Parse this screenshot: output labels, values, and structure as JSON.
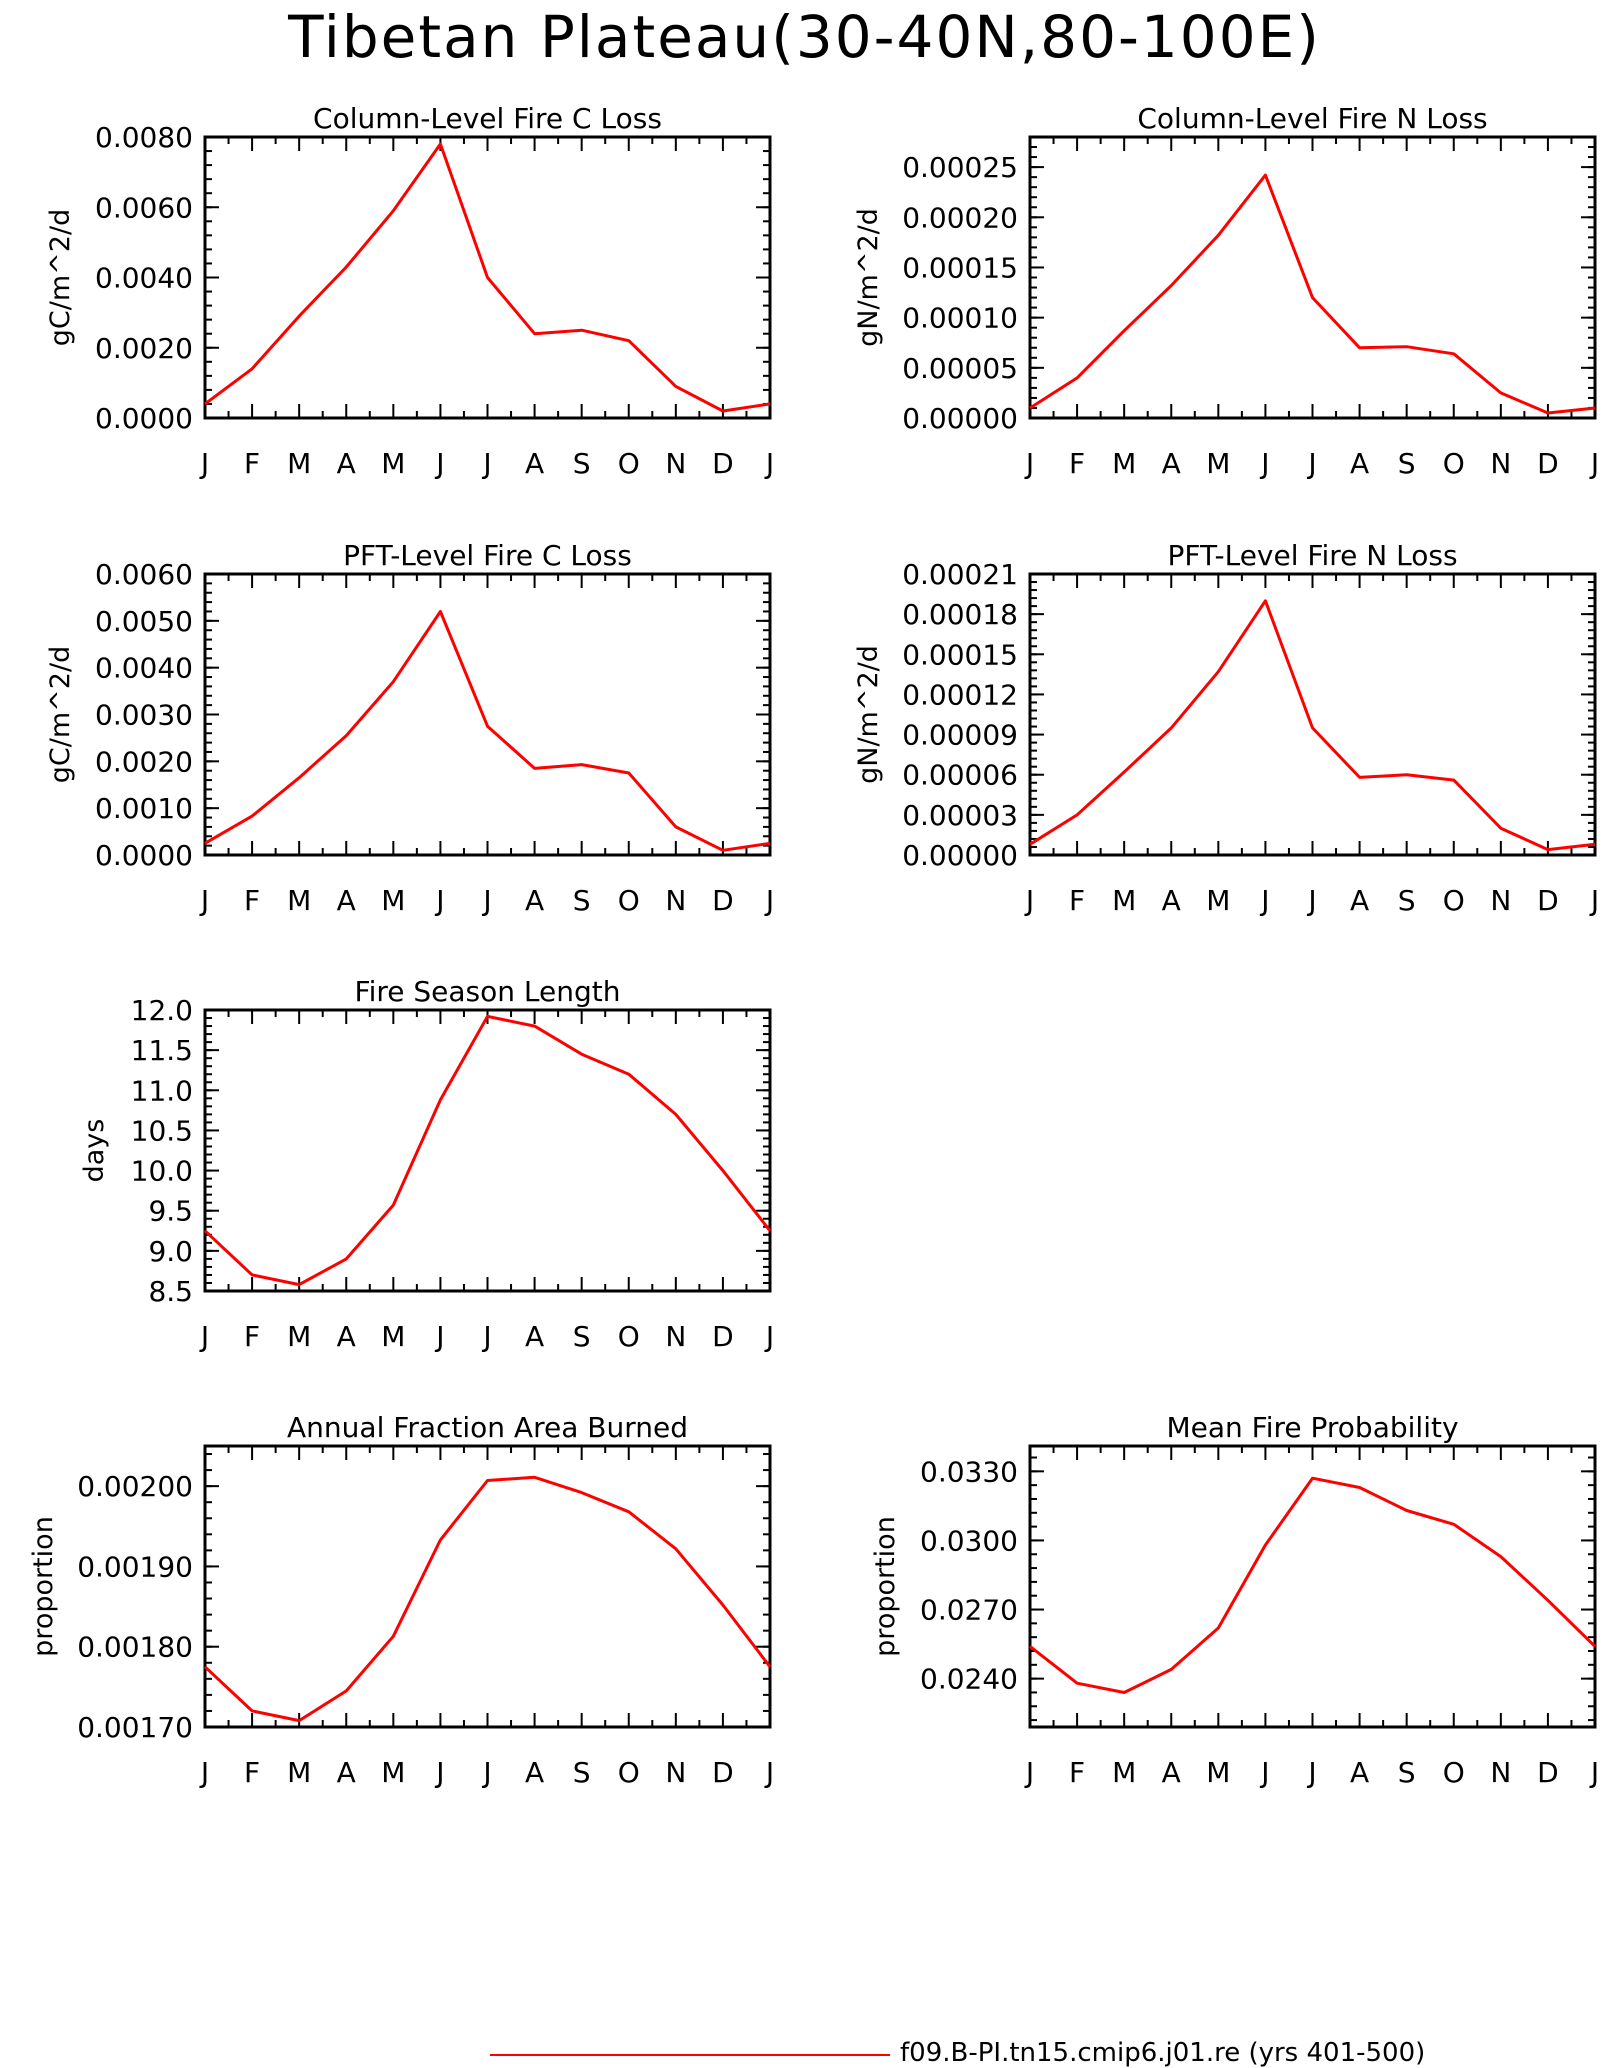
{
  "page": {
    "title": "Tibetan Plateau(30-40N,80-100E)",
    "legend": {
      "label": "f09.B-PI.tn15.cmip6.j01.re (yrs 401-500)",
      "color": "#ff0000"
    }
  },
  "chart_data": [
    {
      "type": "line",
      "title": "Column-Level Fire C Loss",
      "ylabel": "gC/m^2/d",
      "categories": [
        "J",
        "F",
        "M",
        "A",
        "M",
        "J",
        "J",
        "A",
        "S",
        "O",
        "N",
        "D",
        "J"
      ],
      "ylim": [
        0,
        0.008
      ],
      "yticks": [
        0,
        0.002,
        0.004,
        0.006,
        0.008
      ],
      "ytick_labels": [
        "0.0000",
        "0.0020",
        "0.0040",
        "0.0060",
        "0.0080"
      ],
      "series": [
        {
          "color": "#ff0000",
          "values": [
            0.0004,
            0.0014,
            0.0029,
            0.0043,
            0.0059,
            0.0078,
            0.004,
            0.0024,
            0.0025,
            0.0022,
            0.0009,
            0.0002,
            0.0004
          ]
        }
      ]
    },
    {
      "type": "line",
      "title": "Column-Level Fire N Loss",
      "ylabel": "gN/m^2/d",
      "categories": [
        "J",
        "F",
        "M",
        "A",
        "M",
        "J",
        "J",
        "A",
        "S",
        "O",
        "N",
        "D",
        "J"
      ],
      "ylim": [
        0,
        0.00028
      ],
      "yticks": [
        0,
        5e-05,
        0.0001,
        0.00015,
        0.0002,
        0.00025
      ],
      "ytick_labels": [
        "0.00000",
        "0.00005",
        "0.00010",
        "0.00015",
        "0.00020",
        "0.00025"
      ],
      "series": [
        {
          "color": "#ff0000",
          "values": [
            1e-05,
            4e-05,
            8.7e-05,
            0.000132,
            0.000182,
            0.000242,
            0.00012,
            7e-05,
            7.1e-05,
            6.4e-05,
            2.5e-05,
            5e-06,
            1e-05
          ]
        }
      ]
    },
    {
      "type": "line",
      "title": "PFT-Level Fire C Loss",
      "ylabel": "gC/m^2/d",
      "categories": [
        "J",
        "F",
        "M",
        "A",
        "M",
        "J",
        "J",
        "A",
        "S",
        "O",
        "N",
        "D",
        "J"
      ],
      "ylim": [
        0,
        0.006
      ],
      "yticks": [
        0,
        0.001,
        0.002,
        0.003,
        0.004,
        0.005,
        0.006
      ],
      "ytick_labels": [
        "0.0000",
        "0.0010",
        "0.0020",
        "0.0030",
        "0.0040",
        "0.0050",
        "0.0060"
      ],
      "series": [
        {
          "color": "#ff0000",
          "values": [
            0.00025,
            0.00083,
            0.00165,
            0.00255,
            0.0037,
            0.0052,
            0.00275,
            0.00185,
            0.00193,
            0.00175,
            0.0006,
            0.0001,
            0.00025
          ]
        }
      ]
    },
    {
      "type": "line",
      "title": "PFT-Level Fire N Loss",
      "ylabel": "gN/m^2/d",
      "categories": [
        "J",
        "F",
        "M",
        "A",
        "M",
        "J",
        "J",
        "A",
        "S",
        "O",
        "N",
        "D",
        "J"
      ],
      "ylim": [
        0,
        0.00021
      ],
      "yticks": [
        0,
        3e-05,
        6e-05,
        9e-05,
        0.00012,
        0.00015,
        0.00018,
        0.00021
      ],
      "ytick_labels": [
        "0.00000",
        "0.00003",
        "0.00006",
        "0.00009",
        "0.00012",
        "0.00015",
        "0.00018",
        "0.00021"
      ],
      "series": [
        {
          "color": "#ff0000",
          "values": [
            8e-06,
            3e-05,
            6.2e-05,
            9.5e-05,
            0.000137,
            0.00019,
            9.5e-05,
            5.8e-05,
            6e-05,
            5.6e-05,
            2e-05,
            4e-06,
            8e-06
          ]
        }
      ]
    },
    {
      "type": "line",
      "title": "Fire Season Length",
      "ylabel": "days",
      "categories": [
        "J",
        "F",
        "M",
        "A",
        "M",
        "J",
        "J",
        "A",
        "S",
        "O",
        "N",
        "D",
        "J"
      ],
      "ylim": [
        8.5,
        12.0
      ],
      "yticks": [
        8.5,
        9.0,
        9.5,
        10.0,
        10.5,
        11.0,
        11.5,
        12.0
      ],
      "ytick_labels": [
        "8.5",
        "9.0",
        "9.5",
        "10.0",
        "10.5",
        "11.0",
        "11.5",
        "12.0"
      ],
      "series": [
        {
          "color": "#ff0000",
          "values": [
            9.25,
            8.7,
            8.58,
            8.9,
            9.57,
            10.88,
            11.92,
            11.8,
            11.45,
            11.2,
            10.7,
            10.0,
            9.25
          ]
        }
      ]
    },
    {
      "type": "line",
      "title": "Annual Fraction Area Burned",
      "ylabel": "proportion",
      "categories": [
        "J",
        "F",
        "M",
        "A",
        "M",
        "J",
        "J",
        "A",
        "S",
        "O",
        "N",
        "D",
        "J"
      ],
      "ylim": [
        0.0017,
        0.00205
      ],
      "yticks": [
        0.0017,
        0.0018,
        0.0019,
        0.002
      ],
      "ytick_labels": [
        "0.00170",
        "0.00180",
        "0.00190",
        "0.00200"
      ],
      "series": [
        {
          "color": "#ff0000",
          "values": [
            0.001775,
            0.00172,
            0.001708,
            0.001745,
            0.001813,
            0.001933,
            0.002007,
            0.002011,
            0.001992,
            0.001968,
            0.001922,
            0.001852,
            0.001775
          ]
        }
      ]
    },
    {
      "type": "line",
      "title": "Mean Fire Probability",
      "ylabel": "proportion",
      "categories": [
        "J",
        "F",
        "M",
        "A",
        "M",
        "J",
        "J",
        "A",
        "S",
        "O",
        "N",
        "D",
        "J"
      ],
      "ylim": [
        0.0219,
        0.0341
      ],
      "yticks": [
        0.024,
        0.027,
        0.03,
        0.033
      ],
      "ytick_labels": [
        "0.0240",
        "0.0270",
        "0.0300",
        "0.0330"
      ],
      "series": [
        {
          "color": "#ff0000",
          "values": [
            0.0254,
            0.0238,
            0.0234,
            0.0244,
            0.0262,
            0.0298,
            0.0327,
            0.0323,
            0.0313,
            0.0307,
            0.0293,
            0.0274,
            0.0254
          ]
        }
      ]
    }
  ]
}
